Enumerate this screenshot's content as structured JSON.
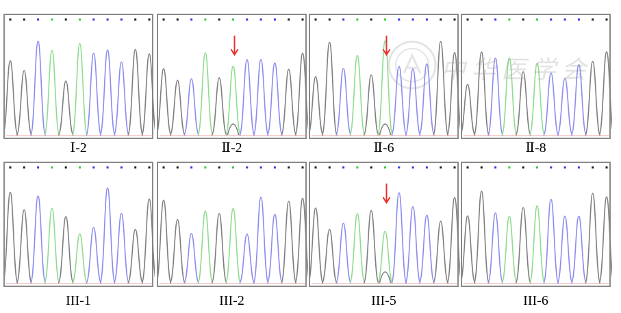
{
  "panels": [
    {
      "label": "Ⅰ-2",
      "arrow": false,
      "seed": 1
    },
    {
      "label": "Ⅱ-2",
      "arrow": true,
      "seed": 2
    },
    {
      "label": "Ⅱ-6",
      "arrow": true,
      "seed": 3
    },
    {
      "label": "Ⅱ-8",
      "arrow": false,
      "seed": 4
    },
    {
      "label": "III-1",
      "arrow": false,
      "seed": 5
    },
    {
      "label": "III-2",
      "arrow": false,
      "seed": 6
    },
    {
      "label": "III-5",
      "arrow": true,
      "seed": 7
    },
    {
      "label": "III-6",
      "arrow": false,
      "seed": 8
    }
  ],
  "base_colors": {
    "G": "#1a1a1a",
    "C": "#3333dd",
    "A": "#33cc33",
    "T": "#dd2222"
  },
  "trace_colors": {
    "G": "#7f7f7f",
    "C": "#8c8cf0",
    "A": "#8fdc8f",
    "T": "#e88a8a"
  },
  "arrow_color": "#e8312c",
  "watermark_text": "中华医学会"
}
